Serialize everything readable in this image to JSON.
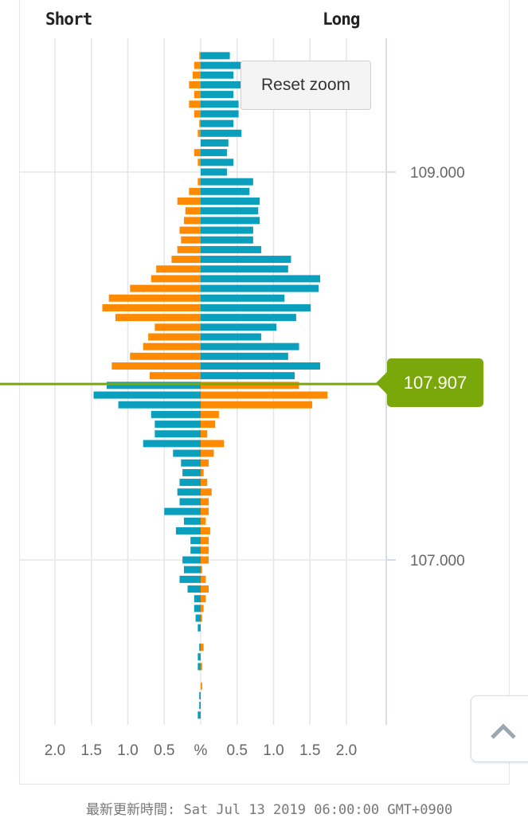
{
  "header": {
    "short_label": "Short",
    "long_label": "Long"
  },
  "reset_zoom_label": "Reset zoom",
  "current_price_label": "107.907",
  "footer": {
    "updated": "最新更新時間: Sat Jul 13 2019 06:00:00 GMT+0900"
  },
  "colors": {
    "orange": "#ff8a00",
    "blue": "#0aa0bd",
    "price_line": "#7aa80a",
    "grid": "#e6e6e6",
    "axis": "#c9d3e6"
  },
  "icons": {
    "scroll_top": "chevron-up-icon"
  },
  "chart_data": {
    "type": "bar",
    "orientation": "horizontal-butterfly",
    "current_price": 107.907,
    "price_start": 109.6,
    "price_step": -0.05,
    "y_ticks": [
      {
        "value": 109,
        "label": "109.000"
      },
      {
        "value": 107,
        "label": "107.000"
      }
    ],
    "x_tick_labels": [
      "2.0",
      "1.5",
      "1.0",
      "0.5",
      "%",
      "0.5",
      "1.0",
      "1.5",
      "2.0"
    ],
    "x_tick_values": [
      -2,
      -1.5,
      -1,
      -0.5,
      0,
      0.5,
      1,
      1.5,
      2
    ],
    "xlim": [
      -2.2,
      2.5
    ],
    "ylim": [
      106.15,
      109.65
    ],
    "grid": true,
    "color_rule": "above current price: short orange, long blue; below: short blue, long orange",
    "short": [
      0.02,
      0.09,
      0.11,
      0.16,
      0.09,
      0.16,
      0.09,
      0.02,
      0.04,
      0,
      0.09,
      0.04,
      0,
      0.04,
      0.16,
      0.32,
      0.21,
      0.23,
      0.29,
      0.27,
      0.32,
      0.4,
      0.61,
      0.68,
      0.97,
      1.26,
      1.35,
      1.17,
      0.63,
      0.72,
      0.79,
      0.97,
      1.22,
      0.7,
      1.29,
      1.47,
      1.13,
      0.68,
      0.63,
      0.63,
      0.79,
      0.38,
      0.27,
      0.25,
      0.29,
      0.32,
      0.29,
      0.5,
      0.23,
      0.34,
      0.14,
      0.14,
      0.25,
      0.23,
      0.29,
      0.18,
      0.09,
      0.09,
      0.07,
      0.04,
      0,
      0.02,
      0.04,
      0.04,
      0,
      0,
      0.02,
      0.02,
      0.04
    ],
    "long": [
      0.4,
      0.55,
      0.45,
      0.55,
      0.45,
      0.52,
      0.52,
      0.45,
      0.56,
      0.38,
      0.36,
      0.45,
      0.36,
      0.72,
      0.67,
      0.81,
      0.79,
      0.81,
      0.72,
      0.72,
      0.83,
      1.24,
      1.2,
      1.64,
      1.62,
      1.15,
      1.51,
      1.31,
      1.04,
      0.83,
      1.35,
      1.2,
      1.64,
      1.29,
      1.35,
      1.74,
      1.53,
      0.25,
      0.2,
      0.09,
      0.32,
      0.18,
      0.11,
      0.04,
      0.09,
      0.15,
      0.11,
      0.11,
      0.07,
      0.13,
      0.11,
      0.11,
      0.11,
      0.02,
      0.07,
      0.11,
      0.07,
      0.04,
      0.02,
      0,
      0,
      0.04,
      0,
      0.02,
      0,
      0.02,
      0,
      0,
      0
    ]
  }
}
